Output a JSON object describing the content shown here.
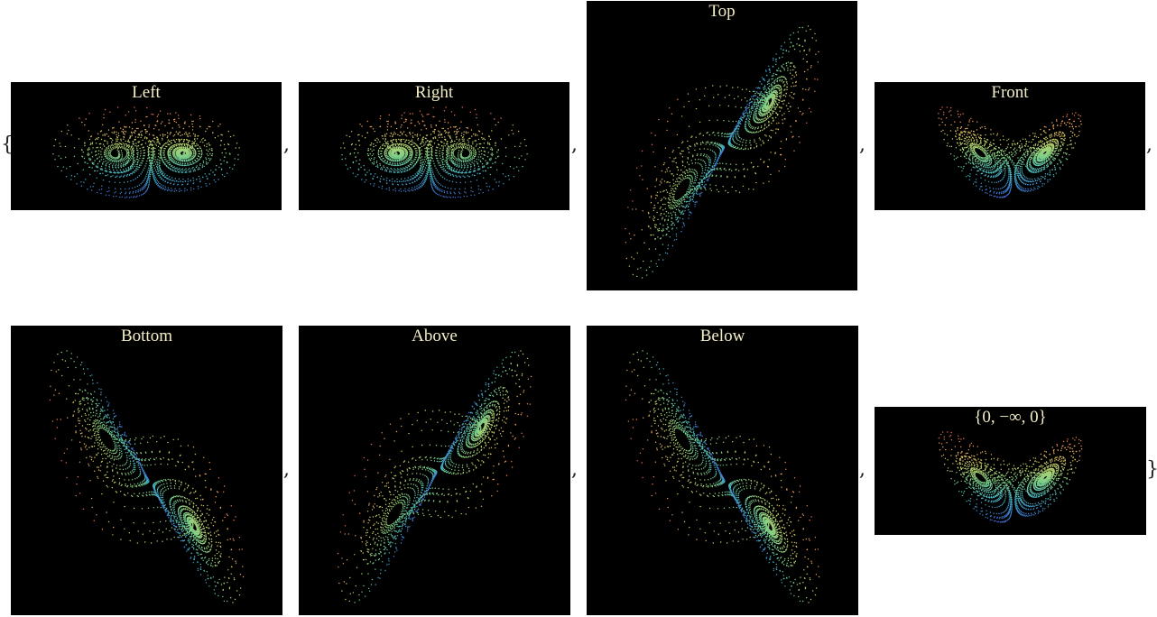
{
  "list": {
    "open_brace": "{",
    "close_brace": "}",
    "separator": ","
  },
  "panels": [
    {
      "label": "Left",
      "view": "left"
    },
    {
      "label": "Right",
      "view": "right"
    },
    {
      "label": "Top",
      "view": "top"
    },
    {
      "label": "Front",
      "view": "front"
    },
    {
      "label": "Bottom",
      "view": "bottom"
    },
    {
      "label": "Above",
      "view": "above"
    },
    {
      "label": "Below",
      "view": "below"
    },
    {
      "label": "{0, −∞, 0}",
      "view": "vector"
    }
  ],
  "colors": {
    "background": "#000000",
    "label": "#f2edc6",
    "gradient": [
      "#5a4fcf",
      "#3f86d9",
      "#49b6c4",
      "#7cd08a",
      "#c9d66a",
      "#f0a85b",
      "#e86a4f"
    ]
  }
}
